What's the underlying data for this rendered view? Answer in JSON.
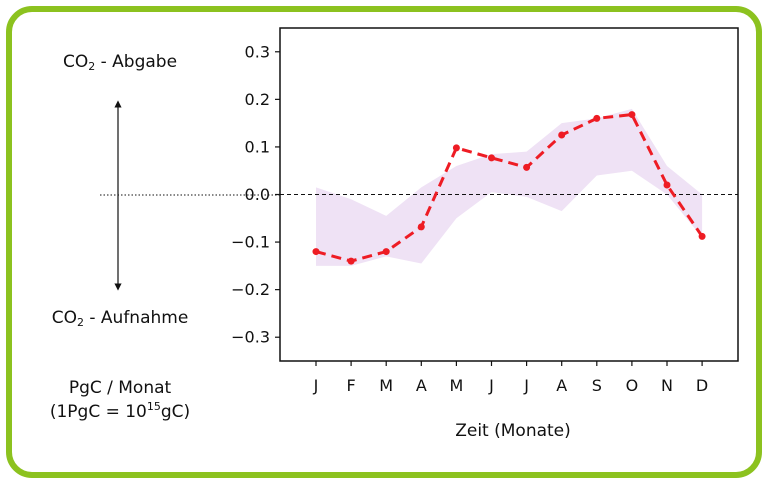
{
  "left_labels": {
    "release": {
      "pre": "CO",
      "sub": "2",
      "post": " - Abgabe"
    },
    "uptake": {
      "pre": "CO",
      "sub": "2",
      "post": " - Aufnahme"
    },
    "unit_line1": "PgC / Monat",
    "unit_line2_pre": "(1PgC = 10",
    "unit_line2_sup": "15",
    "unit_line2_post": "gC)"
  },
  "chart_data": {
    "type": "line",
    "title": "",
    "xlabel": "Zeit (Monate)",
    "ylabel": "",
    "categories": [
      "J",
      "F",
      "M",
      "A",
      "M",
      "J",
      "J",
      "A",
      "S",
      "O",
      "N",
      "D"
    ],
    "ylim": [
      -0.35,
      0.35
    ],
    "yticks": [
      -0.3,
      -0.2,
      -0.1,
      0.0,
      0.1,
      0.2,
      0.3
    ],
    "ytick_labels": [
      "−0.3",
      "−0.2",
      "−0.1",
      "0.0",
      "0.1",
      "0.2",
      "0.3"
    ],
    "series": [
      {
        "values": [
          -0.12,
          -0.14,
          -0.12,
          -0.068,
          0.098,
          0.077,
          0.057,
          0.125,
          0.16,
          0.168,
          0.02,
          -0.088
        ],
        "color": "#ee1c24",
        "style": "dashed",
        "marker": "circle"
      }
    ],
    "band": {
      "upper": [
        0.015,
        -0.01,
        -0.045,
        0.015,
        0.06,
        0.085,
        0.09,
        0.15,
        0.16,
        0.18,
        0.06,
        0.0
      ],
      "lower": [
        -0.15,
        -0.15,
        -0.13,
        -0.145,
        -0.05,
        0.005,
        -0.005,
        -0.035,
        0.04,
        0.05,
        0.0,
        -0.09
      ],
      "color": "#efe2f5"
    },
    "reference_line": 0.0,
    "grid": false,
    "legend": "none"
  },
  "colors": {
    "frame": "#8cc21f",
    "series": "#ee1c24",
    "band": "#efe2f5"
  }
}
